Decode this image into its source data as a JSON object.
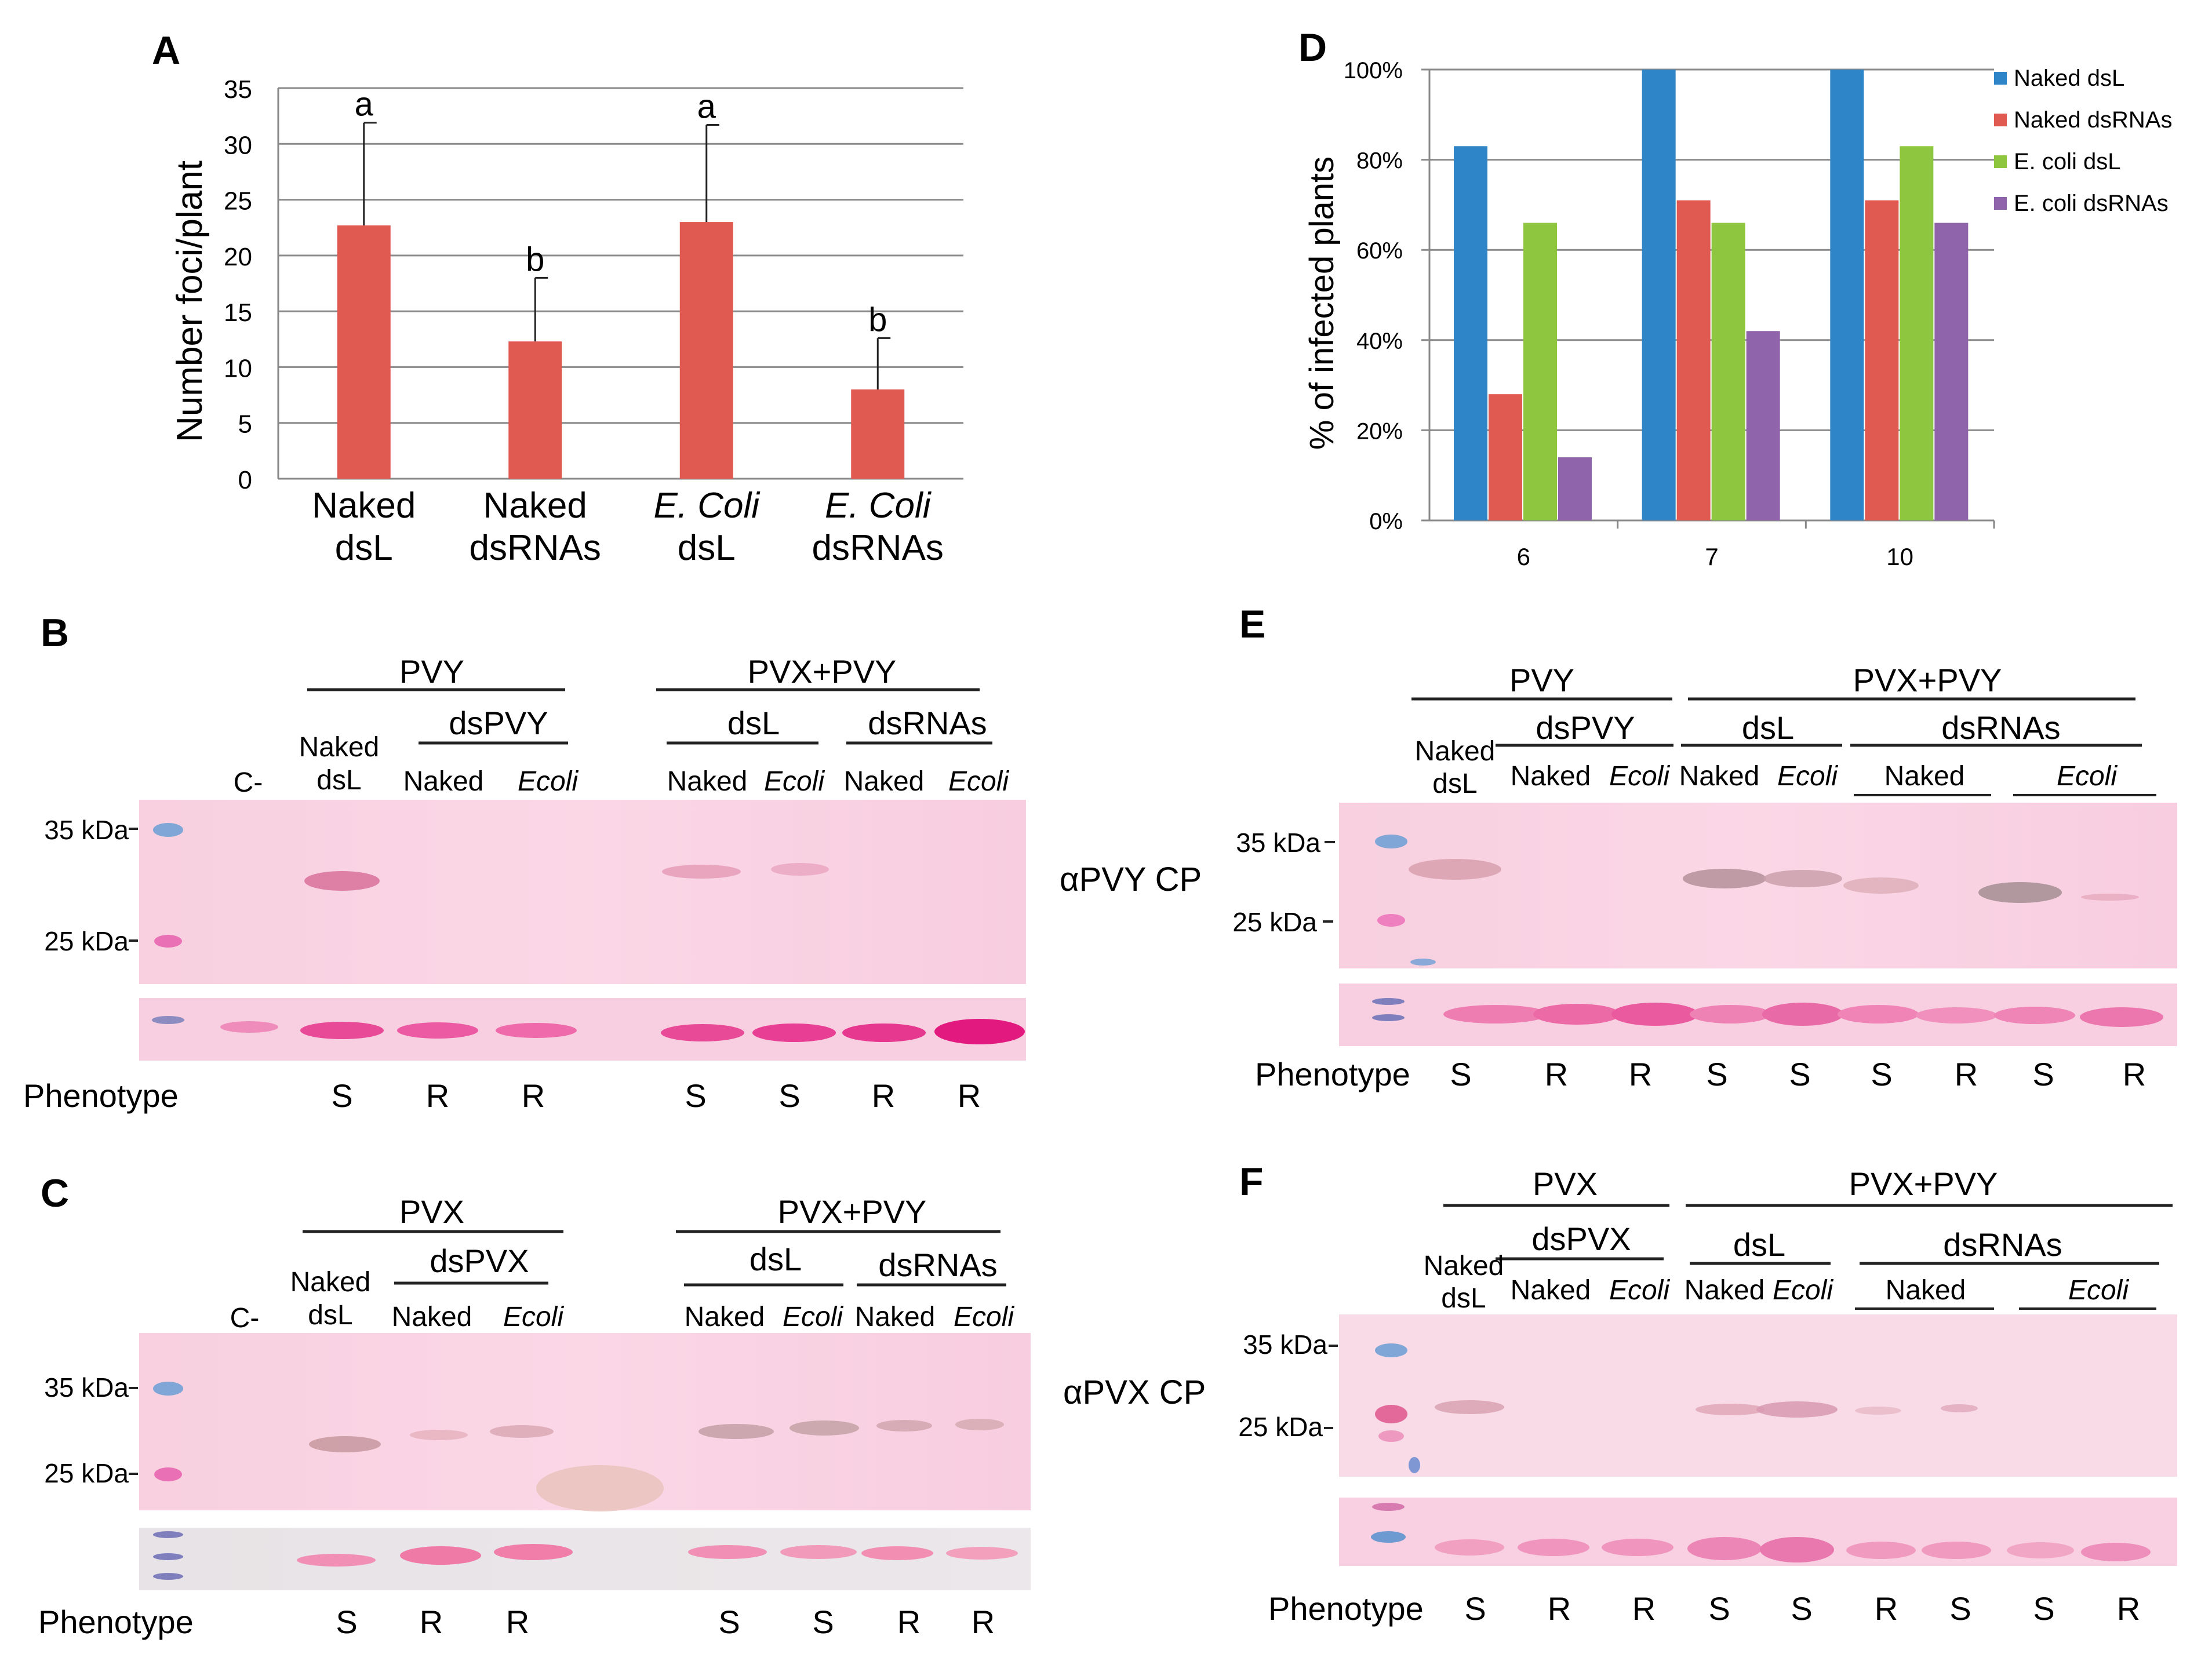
{
  "panel_A": {
    "letter": "A",
    "ylabel": "Number foci/plant",
    "yticks": [
      "0",
      "5",
      "10",
      "15",
      "20",
      "25",
      "30",
      "35"
    ],
    "cat_lines": [
      [
        "Naked",
        "dsL"
      ],
      [
        "Naked",
        "dsRNAs"
      ],
      [
        "E. Coli",
        "dsL"
      ],
      [
        "E. Coli",
        "dsRNAs"
      ]
    ],
    "letters": [
      "a",
      "b",
      "a",
      "b"
    ]
  },
  "panel_D": {
    "letter": "D",
    "ylabel": "% of infected plants",
    "yticks": [
      "0%",
      "20%",
      "40%",
      "60%",
      "80%",
      "100%"
    ]
  },
  "chart_data": [
    {
      "type": "bar",
      "title": "",
      "xlabel": "",
      "ylabel": "Number foci/plant",
      "categories": [
        "Naked dsL",
        "Naked dsRNAs",
        "E. Coli dsL",
        "E. Coli dsRNAs"
      ],
      "values": [
        22.7,
        12.3,
        23.0,
        8.0
      ],
      "errors": [
        9.2,
        5.7,
        8.7,
        4.6
      ],
      "ylim": [
        0,
        35
      ],
      "grid": true,
      "color": "#e05a52"
    },
    {
      "type": "bar",
      "title": "",
      "xlabel": "",
      "ylabel": "% of infected plants",
      "categories": [
        "6",
        "7",
        "10"
      ],
      "ylim": [
        0,
        100
      ],
      "grid": true,
      "legend": "right",
      "series": [
        {
          "name": "Naked dsL",
          "color": "#2e86c8",
          "values": [
            83,
            100,
            100
          ]
        },
        {
          "name": "Naked dsRNAs",
          "color": "#e05a52",
          "values": [
            28,
            71,
            71
          ]
        },
        {
          "name": "E. coli dsL",
          "color": "#8fc63f",
          "values": [
            66,
            66,
            83
          ]
        },
        {
          "name": "E. coli dsRNAs",
          "color": "#8f64aa",
          "values": [
            14,
            42,
            66
          ]
        }
      ]
    }
  ],
  "blots": {
    "B": {
      "letter": "B",
      "group1": "PVY",
      "group2": "PVX+PVY",
      "sub1": "dsPVY",
      "sub_dsL": "dsL",
      "sub_dsRNAs": "dsRNAs",
      "neg": "C-",
      "naked": "Naked",
      "dsl": "dsL",
      "lanes": [
        "Naked",
        "Ecoli",
        "Naked",
        "Ecoli",
        "Naked",
        "Ecoli"
      ],
      "kda35": "35 kDa",
      "kda25": "25 kDa",
      "phenotype_label": "Phenotype",
      "phenotype": [
        "S",
        "R",
        "R",
        "S",
        "S",
        "R",
        "R"
      ]
    },
    "C": {
      "letter": "C",
      "group1": "PVX",
      "group2": "PVX+PVY",
      "sub1": "dsPVX",
      "sub_dsL": "dsL",
      "sub_dsRNAs": "dsRNAs",
      "neg": "C-",
      "naked": "Naked",
      "dsl": "dsL",
      "lanes": [
        "Naked",
        "Ecoli",
        "Naked",
        "Ecoli",
        "Naked",
        "Ecoli"
      ],
      "kda35": "35 kDa",
      "kda25": "25 kDa",
      "phenotype_label": "Phenotype",
      "phenotype": [
        "S",
        "R",
        "R",
        "S",
        "S",
        "R",
        "R"
      ]
    },
    "E": {
      "letter": "E",
      "group1": "PVY",
      "group2": "PVX+PVY",
      "sub1": "dsPVY",
      "sub_dsL": "dsL",
      "sub_dsRNAs": "dsRNAs",
      "naked": "Naked",
      "dsl": "dsL",
      "lanes": [
        "Naked",
        "Ecoli",
        "Naked",
        "Ecoli",
        "Naked",
        "Ecoli"
      ],
      "kda35": "35 kDa",
      "kda25": "25 kDa",
      "phenotype_label": "Phenotype",
      "phenotype": [
        "S",
        "R",
        "R",
        "S",
        "S",
        "S",
        "R",
        "S",
        "R"
      ]
    },
    "F": {
      "letter": "F",
      "group1": "PVX",
      "group2": "PVX+PVY",
      "sub1": "dsPVX",
      "sub_dsL": "dsL",
      "sub_dsRNAs": "dsRNAs",
      "naked": "Naked",
      "dsl": "dsL",
      "lanes": [
        "Naked",
        "Ecoli",
        "Naked",
        "Ecoli",
        "Naked",
        "Ecoli"
      ],
      "kda35": "35 kDa",
      "kda25": "25 kDa",
      "phenotype_label": "Phenotype",
      "phenotype": [
        "S",
        "R",
        "R",
        "S",
        "S",
        "R",
        "S",
        "S",
        "R"
      ]
    }
  },
  "antibody_pvy": "αPVY CP",
  "antibody_pvx": "αPVX CP"
}
